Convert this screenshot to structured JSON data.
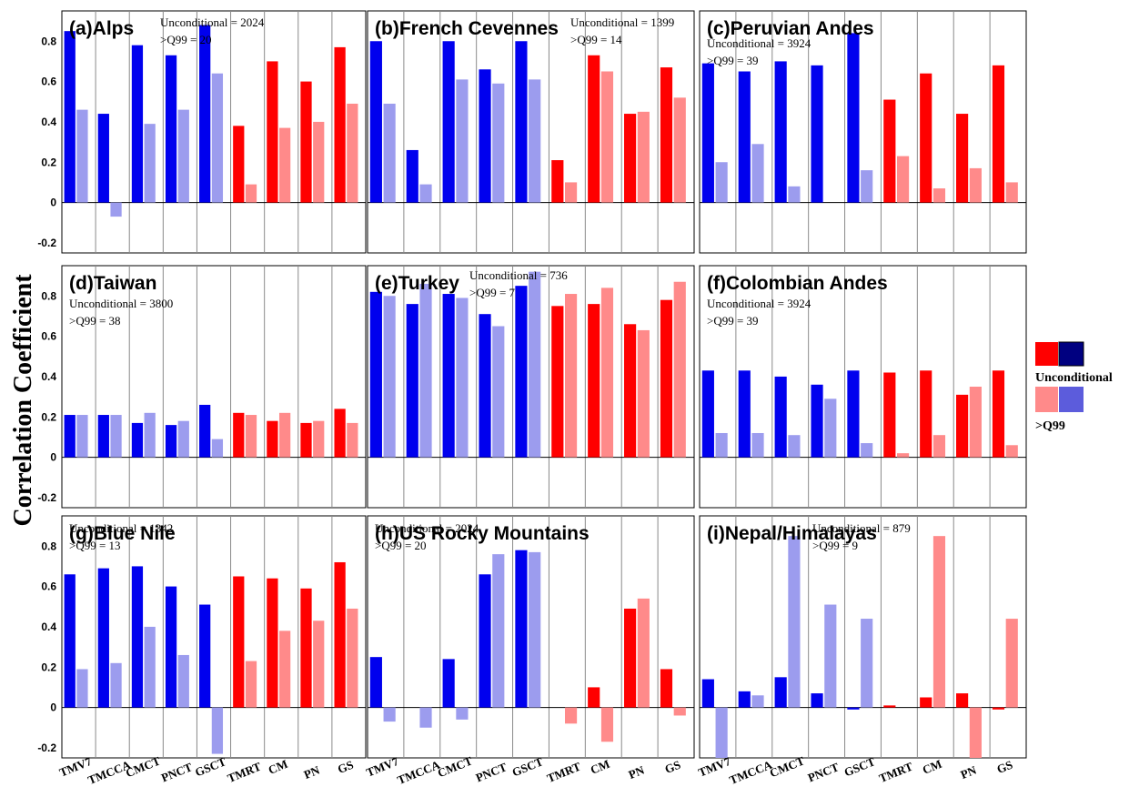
{
  "figure": {
    "ylabel": "Correlation Coefficient",
    "colors": {
      "uncond_red": "#ff0000",
      "uncond_blue": "#0000ee",
      "q99_red": "#ff8a8a",
      "q99_blue": "#9c9cee",
      "legend_dark_blue": "#000080",
      "legend_q99_blue": "#5c5cdc"
    },
    "legend": {
      "unconditional_label": "Unconditional",
      "q99_label": ">Q99"
    }
  },
  "chart_data": [
    {
      "type": "bar",
      "title": "(a)Alps",
      "notes": [
        "Unconditional = 2024",
        ">Q99 = 20"
      ],
      "categories": [
        "TMV7",
        "TMCCA",
        "CMCT",
        "PNCT",
        "GSCT",
        "TMRT",
        "CM",
        "PN",
        "GS"
      ],
      "category_group": [
        "blue",
        "blue",
        "blue",
        "blue",
        "blue",
        "red",
        "red",
        "red",
        "red"
      ],
      "series": [
        {
          "name": "Unconditional",
          "values": [
            0.85,
            0.44,
            0.78,
            0.73,
            0.88,
            0.38,
            0.7,
            0.6,
            0.77
          ]
        },
        {
          "name": ">Q99",
          "values": [
            0.46,
            -0.07,
            0.39,
            0.46,
            0.64,
            0.09,
            0.37,
            0.4,
            0.49
          ]
        }
      ],
      "ylim": [
        -0.25,
        0.95
      ],
      "yticks": [
        "-0.2",
        "0",
        "0.2",
        "0.4",
        "0.6",
        "0.8"
      ]
    },
    {
      "type": "bar",
      "title": "(b)French Cevennes",
      "notes": [
        "Unconditional = 1399",
        ">Q99 = 14"
      ],
      "categories": [
        "TMV7",
        "TMCCA",
        "CMCT",
        "PNCT",
        "GSCT",
        "TMRT",
        "CM",
        "PN",
        "GS"
      ],
      "category_group": [
        "blue",
        "blue",
        "blue",
        "blue",
        "blue",
        "red",
        "red",
        "red",
        "red"
      ],
      "series": [
        {
          "name": "Unconditional",
          "values": [
            0.8,
            0.26,
            0.8,
            0.66,
            0.8,
            0.21,
            0.73,
            0.44,
            0.67
          ]
        },
        {
          "name": ">Q99",
          "values": [
            0.49,
            0.09,
            0.61,
            0.59,
            0.61,
            0.1,
            0.65,
            0.45,
            0.52
          ]
        }
      ],
      "ylim": [
        -0.25,
        0.95
      ],
      "yticks": []
    },
    {
      "type": "bar",
      "title": "(c)Peruvian Andes",
      "notes": [
        "Unconditional = 3924",
        ">Q99 = 39"
      ],
      "categories": [
        "TMV7",
        "TMCCA",
        "CMCT",
        "PNCT",
        "GSCT",
        "TMRT",
        "CM",
        "PN",
        "GS"
      ],
      "category_group": [
        "blue",
        "blue",
        "blue",
        "blue",
        "blue",
        "red",
        "red",
        "red",
        "red"
      ],
      "series": [
        {
          "name": "Unconditional",
          "values": [
            0.69,
            0.65,
            0.7,
            0.68,
            0.84,
            0.51,
            0.64,
            0.44,
            0.68
          ]
        },
        {
          "name": ">Q99",
          "values": [
            0.2,
            0.29,
            0.08,
            0.0,
            0.16,
            0.23,
            0.07,
            0.17,
            0.1
          ]
        }
      ],
      "ylim": [
        -0.25,
        0.95
      ],
      "yticks": []
    },
    {
      "type": "bar",
      "title": "(d)Taiwan",
      "notes": [
        "Unconditional = 3800",
        ">Q99 = 38"
      ],
      "categories": [
        "TMV7",
        "TMCCA",
        "CMCT",
        "PNCT",
        "GSCT",
        "TMRT",
        "CM",
        "PN",
        "GS"
      ],
      "category_group": [
        "blue",
        "blue",
        "blue",
        "blue",
        "blue",
        "red",
        "red",
        "red",
        "red"
      ],
      "series": [
        {
          "name": "Unconditional",
          "values": [
            0.21,
            0.21,
            0.17,
            0.16,
            0.26,
            0.22,
            0.18,
            0.17,
            0.24
          ]
        },
        {
          "name": ">Q99",
          "values": [
            0.21,
            0.21,
            0.22,
            0.18,
            0.09,
            0.21,
            0.22,
            0.18,
            0.17
          ]
        }
      ],
      "ylim": [
        -0.25,
        0.95
      ],
      "yticks": [
        "-0.2",
        "0",
        "0.2",
        "0.4",
        "0.6",
        "0.8"
      ]
    },
    {
      "type": "bar",
      "title": "(e)Turkey",
      "notes": [
        "Unconditional = 736",
        ">Q99 = 7"
      ],
      "categories": [
        "TMV7",
        "TMCCA",
        "CMCT",
        "PNCT",
        "GSCT",
        "TMRT",
        "CM",
        "PN",
        "GS"
      ],
      "category_group": [
        "blue",
        "blue",
        "blue",
        "blue",
        "blue",
        "red",
        "red",
        "red",
        "red"
      ],
      "series": [
        {
          "name": "Unconditional",
          "values": [
            0.82,
            0.76,
            0.81,
            0.71,
            0.85,
            0.75,
            0.76,
            0.66,
            0.78
          ]
        },
        {
          "name": ">Q99",
          "values": [
            0.8,
            0.86,
            0.79,
            0.65,
            0.92,
            0.81,
            0.84,
            0.63,
            0.87
          ]
        }
      ],
      "ylim": [
        -0.25,
        0.95
      ],
      "yticks": []
    },
    {
      "type": "bar",
      "title": "(f)Colombian Andes",
      "notes": [
        "Unconditional = 3924",
        ">Q99 = 39"
      ],
      "categories": [
        "TMV7",
        "TMCCA",
        "CMCT",
        "PNCT",
        "GSCT",
        "TMRT",
        "CM",
        "PN",
        "GS"
      ],
      "category_group": [
        "blue",
        "blue",
        "blue",
        "blue",
        "blue",
        "red",
        "red",
        "red",
        "red"
      ],
      "series": [
        {
          "name": "Unconditional",
          "values": [
            0.43,
            0.43,
            0.4,
            0.36,
            0.43,
            0.42,
            0.43,
            0.31,
            0.43
          ]
        },
        {
          "name": ">Q99",
          "values": [
            0.12,
            0.12,
            0.11,
            0.29,
            0.07,
            0.02,
            0.11,
            0.35,
            0.06
          ]
        }
      ],
      "ylim": [
        -0.25,
        0.95
      ],
      "yticks": []
    },
    {
      "type": "bar",
      "title": "(g)Blue Nile",
      "notes": [
        "Unconditional = 1342",
        ">Q99 = 13"
      ],
      "categories": [
        "TMV7",
        "TMCCA",
        "CMCT",
        "PNCT",
        "GSCT",
        "TMRT",
        "CM",
        "PN",
        "GS"
      ],
      "category_group": [
        "blue",
        "blue",
        "blue",
        "blue",
        "blue",
        "red",
        "red",
        "red",
        "red"
      ],
      "series": [
        {
          "name": "Unconditional",
          "values": [
            0.66,
            0.69,
            0.7,
            0.6,
            0.51,
            0.65,
            0.64,
            0.59,
            0.72
          ]
        },
        {
          "name": ">Q99",
          "values": [
            0.19,
            0.22,
            0.4,
            0.26,
            -0.23,
            0.23,
            0.38,
            0.43,
            0.49
          ]
        }
      ],
      "ylim": [
        -0.25,
        0.95
      ],
      "yticks": [
        "-0.2",
        "0",
        "0.2",
        "0.4",
        "0.6",
        "0.8"
      ]
    },
    {
      "type": "bar",
      "title": "(h)US Rocky Mountains",
      "notes": [
        "Unconditional = 2024",
        ">Q99 = 20"
      ],
      "categories": [
        "TMV7",
        "TMCCA",
        "CMCT",
        "PNCT",
        "GSCT",
        "TMRT",
        "CM",
        "PN",
        "GS"
      ],
      "category_group": [
        "blue",
        "blue",
        "blue",
        "blue",
        "blue",
        "red",
        "red",
        "red",
        "red"
      ],
      "series": [
        {
          "name": "Unconditional",
          "values": [
            0.25,
            0.0,
            0.24,
            0.66,
            0.78,
            0.0,
            0.1,
            0.49,
            0.19
          ]
        },
        {
          "name": ">Q99",
          "values": [
            -0.07,
            -0.1,
            -0.06,
            0.76,
            0.77,
            -0.08,
            -0.17,
            0.54,
            -0.04
          ]
        }
      ],
      "ylim": [
        -0.25,
        0.95
      ],
      "yticks": []
    },
    {
      "type": "bar",
      "title": "(i)Nepal/Himalayas",
      "notes": [
        "Unconditional = 879",
        ">Q99 = 9"
      ],
      "categories": [
        "TMV7",
        "TMCCA",
        "CMCT",
        "PNCT",
        "GSCT",
        "TMRT",
        "CM",
        "PN",
        "GS"
      ],
      "category_group": [
        "blue",
        "blue",
        "blue",
        "blue",
        "blue",
        "red",
        "red",
        "red",
        "red"
      ],
      "series": [
        {
          "name": "Unconditional",
          "values": [
            0.14,
            0.08,
            0.15,
            0.07,
            -0.01,
            0.01,
            0.05,
            0.07,
            -0.01
          ]
        },
        {
          "name": ">Q99",
          "values": [
            -0.25,
            0.06,
            0.85,
            0.51,
            0.44,
            0.0,
            0.85,
            -0.25,
            0.44
          ]
        }
      ],
      "ylim": [
        -0.25,
        0.95
      ],
      "yticks": []
    }
  ]
}
